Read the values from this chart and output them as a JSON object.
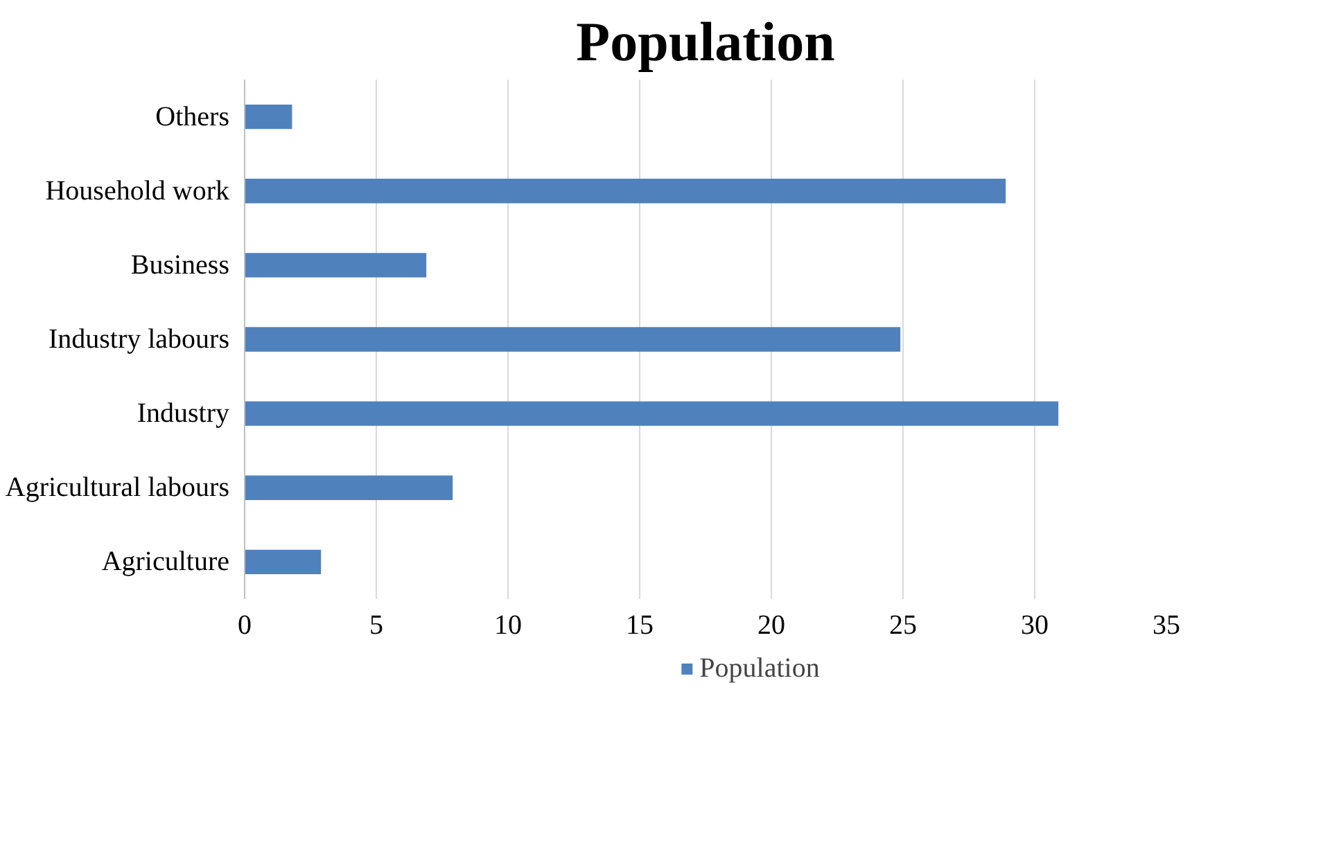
{
  "chart_data": {
    "type": "bar",
    "title": "Population",
    "orientation": "horizontal",
    "categories": [
      "Others",
      "Household work",
      "Business",
      "Industry labours",
      "Industry",
      "Agricultural labours",
      "Agriculture"
    ],
    "series": [
      {
        "name": "Population",
        "color": "#4f81bd",
        "values": [
          1.8,
          28.9,
          6.9,
          24.9,
          30.9,
          7.9,
          2.9
        ]
      }
    ],
    "xlim": [
      0,
      35
    ],
    "xticks": [
      0,
      5,
      10,
      15,
      20,
      25,
      30,
      35
    ],
    "grid": "x",
    "legend": "bottom"
  }
}
